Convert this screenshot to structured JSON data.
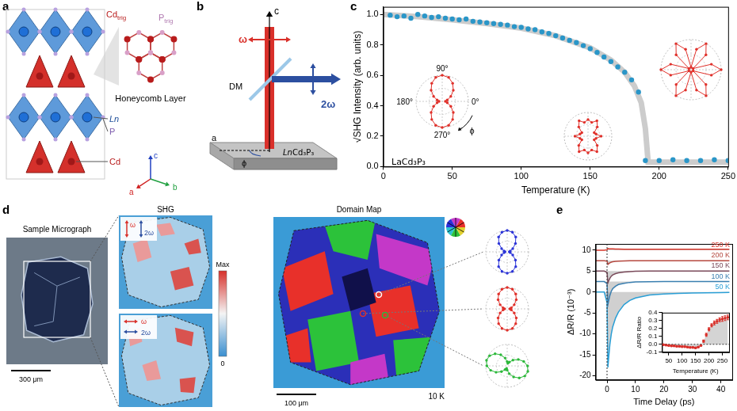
{
  "chart_data": [
    {
      "panel": "c",
      "type": "scatter",
      "x_label": "Temperature (K)",
      "y_label": "√SHG Intensity (arb. units)",
      "annotation": "LaCd₃P₃",
      "xlim": [
        0,
        250
      ],
      "ylim": [
        0,
        1.05
      ],
      "xticks": [
        0,
        50,
        100,
        150,
        200,
        250
      ],
      "yticks": [
        {
          "value": 0,
          "label": "0.0"
        },
        0.2,
        0.4,
        0.6,
        0.8,
        {
          "value": 1,
          "label": "1.0"
        }
      ],
      "grid": false,
      "series": [
        {
          "type": "scatter",
          "marker": "circle",
          "color": "#2a96c8",
          "x": [
            5,
            10,
            15,
            20,
            25,
            30,
            35,
            40,
            45,
            50,
            55,
            60,
            65,
            70,
            75,
            80,
            85,
            90,
            95,
            100,
            105,
            110,
            115,
            120,
            125,
            130,
            135,
            140,
            145,
            150,
            155,
            160,
            165,
            170,
            175,
            180,
            185,
            190,
            200,
            210,
            220,
            230,
            240,
            250
          ],
          "values": [
            0.995,
            0.985,
            0.99,
            0.975,
            1.0,
            0.99,
            0.98,
            0.985,
            0.975,
            0.97,
            0.965,
            0.97,
            0.955,
            0.95,
            0.945,
            0.94,
            0.935,
            0.93,
            0.92,
            0.915,
            0.905,
            0.9,
            0.885,
            0.875,
            0.86,
            0.845,
            0.83,
            0.815,
            0.795,
            0.775,
            0.75,
            0.72,
            0.69,
            0.655,
            0.62,
            0.57,
            0.49,
            0.04,
            0.04,
            0.045,
            0.04,
            0.04,
            0.045,
            0.04
          ]
        },
        {
          "type": "line",
          "line_style": "solid",
          "color": "#cccccc",
          "x": [
            0,
            25,
            50,
            75,
            100,
            125,
            150,
            165,
            175,
            182,
            187,
            190,
            192,
            250
          ],
          "values": [
            1.0,
            0.985,
            0.965,
            0.94,
            0.91,
            0.86,
            0.78,
            0.7,
            0.62,
            0.53,
            0.42,
            0.25,
            0.03,
            0.03
          ]
        }
      ],
      "insets": [
        {
          "color": "#e0302a",
          "angles": [
            0,
            15,
            30,
            45,
            60,
            75,
            90,
            105,
            120,
            135,
            150,
            165,
            180,
            195,
            210,
            225,
            240,
            255,
            270,
            285,
            300,
            315,
            330,
            345
          ],
          "r": [
            0.12,
            0.2,
            0.38,
            0.6,
            0.8,
            0.95,
            1.0,
            0.95,
            0.8,
            0.6,
            0.38,
            0.2,
            0.12,
            0.2,
            0.38,
            0.6,
            0.8,
            0.95,
            1.0,
            0.95,
            0.8,
            0.6,
            0.38,
            0.2
          ],
          "angle_labels": [
            {
              "value": 90,
              "label": "90°"
            },
            {
              "value": 180,
              "label": "180°"
            },
            {
              "value": 0,
              "label": "0°"
            },
            {
              "value": 270,
              "label": "270°"
            }
          ],
          "rotation_label": "ϕ"
        },
        {
          "color": "#e0302a",
          "angles": [
            0,
            15,
            30,
            45,
            60,
            75,
            90,
            105,
            120,
            135,
            150,
            165,
            180,
            195,
            210,
            225,
            240,
            255,
            270,
            285,
            300,
            315,
            330,
            345
          ],
          "r": [
            0.55,
            0.35,
            0.3,
            0.55,
            0.75,
            0.6,
            0.7,
            0.6,
            0.75,
            0.55,
            0.3,
            0.35,
            0.55,
            0.35,
            0.3,
            0.55,
            0.75,
            0.6,
            0.7,
            0.6,
            0.75,
            0.55,
            0.3,
            0.35
          ]
        },
        {
          "color": "#e0302a",
          "angles": [
            0,
            15,
            30,
            45,
            60,
            75,
            90,
            105,
            120,
            135,
            150,
            165,
            180,
            195,
            210,
            225,
            240,
            255,
            270,
            285,
            300,
            315,
            330,
            345
          ],
          "r": [
            1.0,
            0.7,
            0.08,
            0.7,
            1.0,
            0.7,
            0.08,
            0.7,
            1.0,
            0.7,
            0.08,
            0.7,
            1.0,
            0.7,
            0.08,
            0.7,
            1.0,
            0.7,
            0.08,
            0.7,
            1.0,
            0.7,
            0.08,
            0.7
          ]
        }
      ]
    },
    {
      "panel": "e",
      "type": "line",
      "x_label": "Time Delay (ps)",
      "y_label": "ΔR/R (10⁻³)",
      "xlim": [
        -4,
        44
      ],
      "ylim": [
        -21,
        11.5
      ],
      "xticks": [
        0,
        10,
        20,
        30,
        40
      ],
      "yticks": [
        -20,
        -15,
        -10,
        -5,
        0,
        5,
        10
      ],
      "grid": false,
      "vline": 0,
      "x": [
        -4,
        -2,
        -1,
        0,
        0.3,
        0.6,
        1,
        1.5,
        2,
        3,
        4,
        6,
        8,
        10,
        15,
        20,
        25,
        30,
        35,
        40,
        43
      ],
      "series": [
        {
          "name": "250 K",
          "color": "#d7372b",
          "baseline": 10,
          "values": [
            10,
            10,
            10,
            10.1,
            10.4,
            10.35,
            10.3,
            10.3,
            10.3,
            10.25,
            10.25,
            10.2,
            10.2,
            10.2,
            10.2,
            10.2,
            10.2,
            10.2,
            10.2,
            10.2,
            10.2
          ]
        },
        {
          "name": "200 K",
          "color": "#b5483f",
          "baseline": 7.5,
          "values": [
            7.5,
            7.5,
            7.5,
            7.4,
            6.6,
            6.8,
            7.0,
            7.15,
            7.25,
            7.35,
            7.4,
            7.45,
            7.5,
            7.5,
            7.5,
            7.5,
            7.5,
            7.5,
            7.5,
            7.5,
            7.5
          ]
        },
        {
          "name": "150 K",
          "color": "#7a4a5a",
          "baseline": 5,
          "values": [
            5,
            5,
            5,
            4.7,
            2.2,
            2.7,
            3.3,
            3.8,
            4.1,
            4.4,
            4.6,
            4.8,
            4.9,
            4.95,
            5,
            5,
            5,
            5,
            5,
            5,
            5
          ]
        },
        {
          "name": "100 K",
          "color": "#3a7fb0",
          "baseline": 2.5,
          "values": [
            2.5,
            2.5,
            2.5,
            2.0,
            -3.0,
            -2.0,
            -0.8,
            0.2,
            0.8,
            1.4,
            1.8,
            2.1,
            2.3,
            2.4,
            2.45,
            2.5,
            2.5,
            2.5,
            2.5,
            2.5,
            2.5
          ]
        },
        {
          "name": "50 K",
          "color": "#2a9fd6",
          "baseline": 0,
          "values": [
            0,
            0,
            0,
            -2.5,
            -18,
            -15.5,
            -12.5,
            -10,
            -8.3,
            -6.2,
            -4.8,
            -3,
            -2,
            -1.4,
            -0.7,
            -0.45,
            -0.3,
            -0.25,
            -0.2,
            -0.15,
            -0.1
          ]
        }
      ],
      "inset": {
        "type": "scatter",
        "x_label": "Temperature (K)",
        "y_label": "ΔR/R Ratio",
        "marker": "circle",
        "color": "#d9302a",
        "xlim": [
          25,
          275
        ],
        "ylim": [
          -0.1,
          0.4
        ],
        "xticks": [
          50,
          100,
          150,
          200,
          250
        ],
        "yticks": [
          -0.1,
          {
            "value": 0,
            "label": "0.0"
          },
          0.1,
          0.2,
          0.3,
          0.4
        ],
        "hline": 0,
        "x": [
          30,
          40,
          50,
          60,
          70,
          80,
          90,
          100,
          110,
          120,
          130,
          140,
          150,
          160,
          170,
          180,
          190,
          200,
          210,
          220,
          230,
          240,
          250,
          260,
          270
        ],
        "values": [
          -0.005,
          -0.01,
          -0.015,
          -0.02,
          -0.02,
          -0.025,
          -0.025,
          -0.03,
          -0.03,
          -0.035,
          -0.04,
          -0.04,
          -0.045,
          -0.035,
          -0.015,
          0.04,
          0.12,
          0.19,
          0.24,
          0.27,
          0.29,
          0.31,
          0.32,
          0.33,
          0.34
        ],
        "errors": [
          0.008,
          0.008,
          0.008,
          0.008,
          0.008,
          0.008,
          0.008,
          0.008,
          0.008,
          0.008,
          0.008,
          0.008,
          0.008,
          0.008,
          0.008,
          0.015,
          0.02,
          0.02,
          0.02,
          0.025,
          0.025,
          0.025,
          0.03,
          0.03,
          0.03
        ]
      }
    }
  ],
  "panels": {
    "a": {
      "letter": "a",
      "labels": {
        "cd_trig": {
          "text": "Cd",
          "sub": "trig"
        },
        "p_trig": {
          "text": "P",
          "sub": "trig"
        },
        "honeycomb": "Honeycomb Layer",
        "ln": "Ln",
        "p": "P",
        "cd": "Cd"
      },
      "axes": {
        "c": "c",
        "a": "a",
        "b": "b"
      }
    },
    "b": {
      "letter": "b",
      "labels": {
        "c": "c",
        "omega": "ω",
        "two_omega": "2ω",
        "dm": "DM",
        "a": "a",
        "phi": "ϕ",
        "sample": [
          "Ln",
          "Cd₃P₃"
        ]
      }
    },
    "d": {
      "letter": "d",
      "micrograph_title": "Sample Micrograph",
      "micrograph_scale": "300 μm",
      "shg_title": "SHG",
      "colorbar": {
        "max": "Max",
        "min": "0"
      },
      "polarization": {
        "omega": "ω",
        "two_omega": "2ω"
      },
      "domain_title": "Domain Map",
      "domain_scale": "100 μm",
      "temperature": "10 K",
      "polar_insets": [
        {
          "color": "#2d35d8",
          "angles": [
            0,
            15,
            30,
            45,
            60,
            75,
            90,
            105,
            120,
            135,
            150,
            165,
            180,
            195,
            210,
            225,
            240,
            255,
            270,
            285,
            300,
            315,
            330,
            345
          ],
          "r": [
            0.1,
            0.15,
            0.3,
            0.55,
            0.8,
            0.95,
            1.0,
            0.95,
            0.8,
            0.55,
            0.3,
            0.15,
            0.1,
            0.15,
            0.3,
            0.55,
            0.8,
            0.95,
            1.0,
            0.95,
            0.8,
            0.55,
            0.3,
            0.15
          ]
        },
        {
          "color": "#e0302a",
          "angles": [
            0,
            15,
            30,
            45,
            60,
            75,
            90,
            105,
            120,
            135,
            150,
            165,
            180,
            195,
            210,
            225,
            240,
            255,
            270,
            285,
            300,
            315,
            330,
            345
          ],
          "r": [
            0.12,
            0.2,
            0.38,
            0.6,
            0.8,
            0.95,
            1.0,
            0.95,
            0.8,
            0.6,
            0.38,
            0.2,
            0.12,
            0.2,
            0.38,
            0.6,
            0.8,
            0.95,
            1.0,
            0.95,
            0.8,
            0.6,
            0.38,
            0.2
          ]
        },
        {
          "color": "#2cb83a",
          "angles": [
            0,
            15,
            30,
            45,
            60,
            75,
            90,
            105,
            120,
            135,
            150,
            165,
            180,
            195,
            210,
            225,
            240,
            255,
            270,
            285,
            300,
            315,
            330,
            345
          ],
          "r": [
            0.95,
            0.8,
            0.6,
            0.38,
            0.2,
            0.12,
            0.2,
            0.38,
            0.6,
            0.8,
            0.95,
            1.0,
            0.95,
            0.8,
            0.6,
            0.38,
            0.2,
            0.12,
            0.2,
            0.38,
            0.6,
            0.8,
            0.95,
            1.0
          ]
        }
      ]
    }
  }
}
